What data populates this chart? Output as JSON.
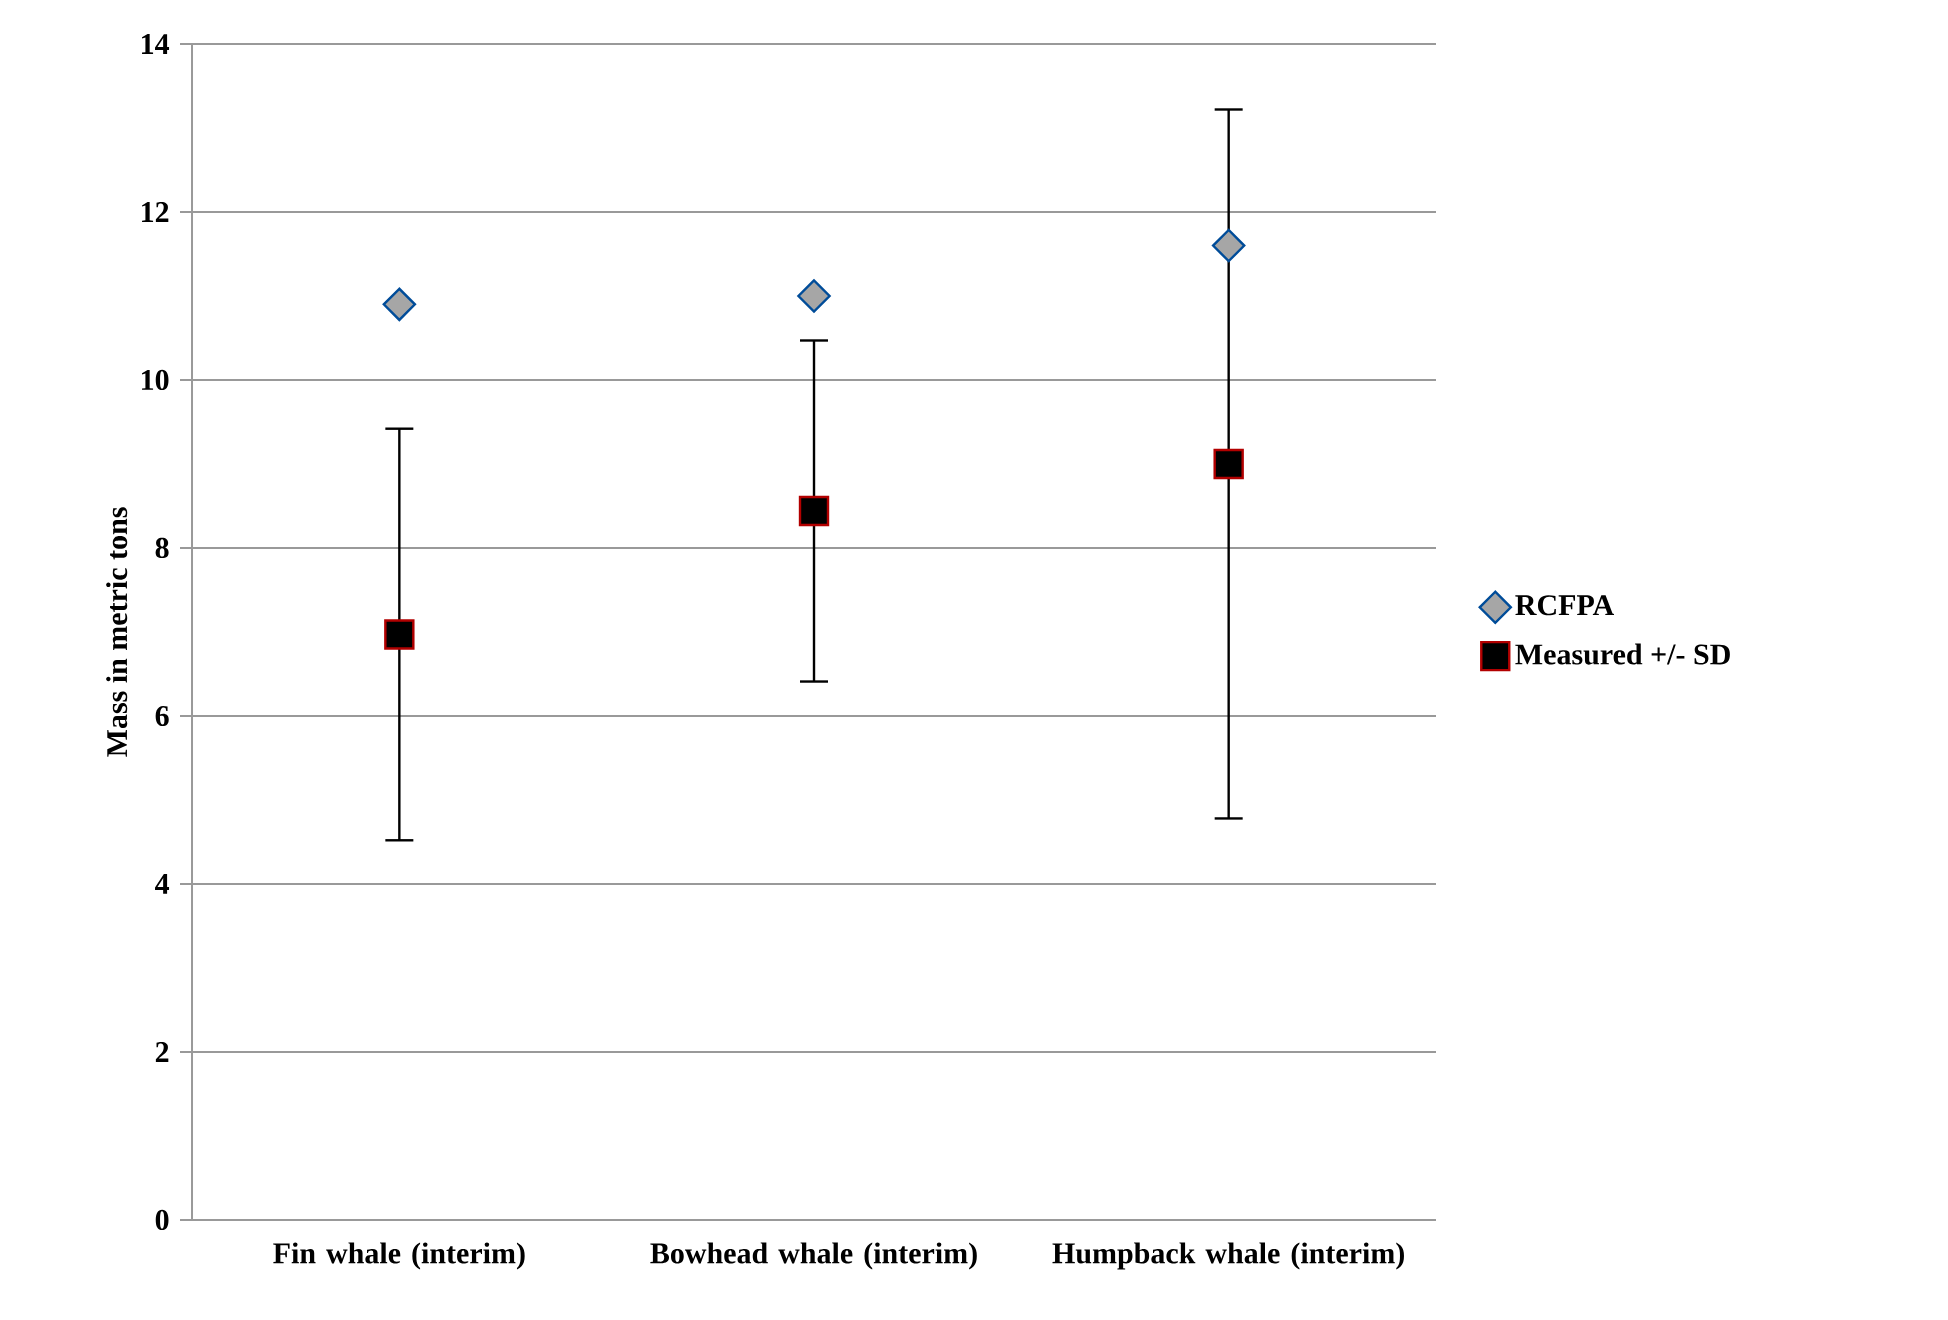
{
  "chart_data": {
    "type": "scatter",
    "ylabel": "Mass in metric tons",
    "categories": [
      "Fin whale (interim)",
      "Bowhead whale (interim)",
      "Humpback whale (interim)"
    ],
    "series": [
      {
        "name": "RCFPA",
        "color": "#a6a6a6",
        "marker": "diamond",
        "values": [
          10.9,
          11.0,
          11.6
        ]
      },
      {
        "name": "Measured +/- SD",
        "color": "#000000",
        "marker": "square",
        "values": [
          6.97,
          8.44,
          9.0
        ],
        "errors": [
          2.45,
          2.03,
          4.22
        ]
      }
    ],
    "ylim": [
      0,
      14
    ],
    "yticks": [
      0,
      2,
      4,
      6,
      8,
      10,
      12,
      14
    ],
    "grid": "y",
    "legend": "right"
  }
}
